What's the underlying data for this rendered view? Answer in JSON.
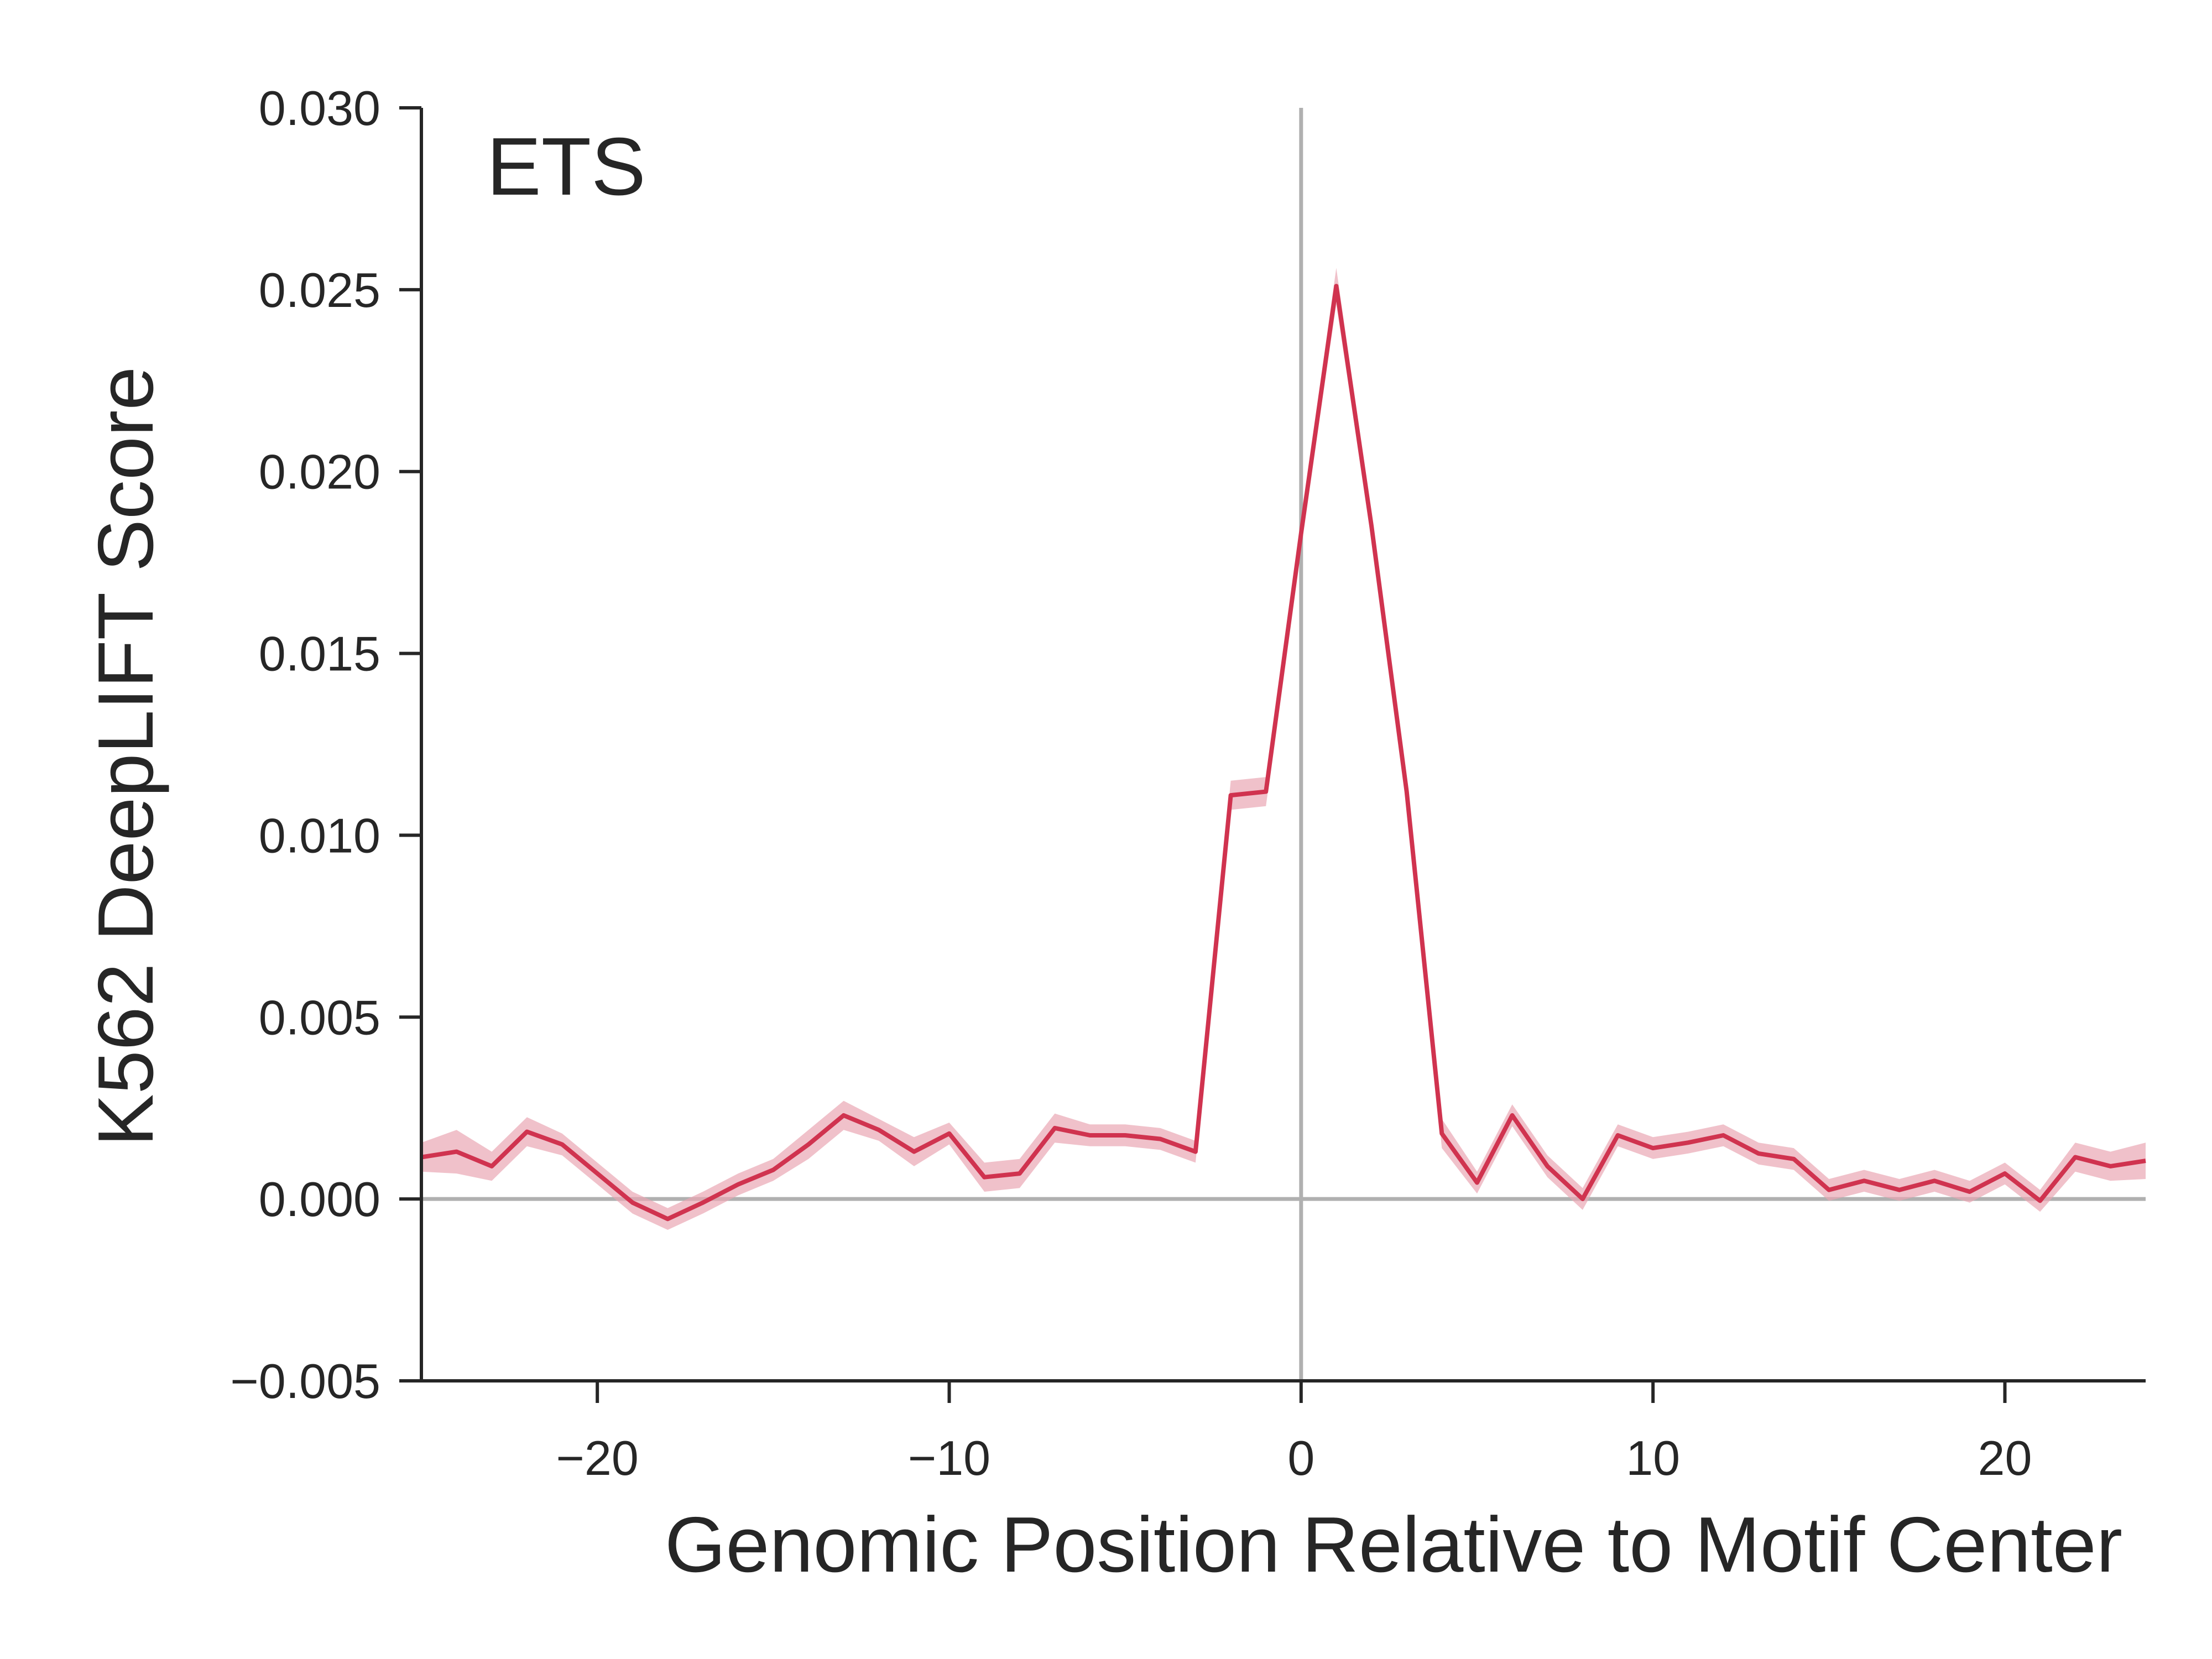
{
  "chart_data": {
    "type": "line",
    "annotation": "ETS",
    "xlabel": "Genomic Position Relative to Motif Center",
    "ylabel": "K562 DeepLIFT Score",
    "xlim": [
      -25,
      24
    ],
    "ylim": [
      -0.005,
      0.03
    ],
    "x_ticks": [
      -20,
      -10,
      0,
      10,
      20
    ],
    "x_tick_labels": [
      "−20",
      "−10",
      "0",
      "10",
      "20"
    ],
    "y_ticks": [
      -0.005,
      0.0,
      0.005,
      0.01,
      0.015,
      0.02,
      0.025,
      0.03
    ],
    "y_tick_labels": [
      "−0.005",
      "0.000",
      "0.005",
      "0.010",
      "0.015",
      "0.020",
      "0.025",
      "0.030"
    ],
    "reference_lines": {
      "x": 0,
      "y": 0
    },
    "grid": false,
    "colors": {
      "line": "#d0334f",
      "band": "#e9a7b4",
      "reference": "#b0b0b0",
      "axis": "#262626"
    },
    "series": [
      {
        "x": [
          -25,
          -24,
          -23,
          -22,
          -21,
          -20,
          -19,
          -18,
          -17,
          -16,
          -15,
          -14,
          -13,
          -12,
          -11,
          -10,
          -9,
          -8,
          -7,
          -6,
          -5,
          -4,
          -3,
          -2,
          -1,
          0,
          1,
          2,
          3,
          4,
          5,
          6,
          7,
          8,
          9,
          10,
          11,
          12,
          13,
          14,
          15,
          16,
          17,
          18,
          19,
          20,
          21,
          22,
          23,
          24
        ],
        "y": [
          0.00115,
          0.0013,
          0.0009,
          0.00185,
          0.0015,
          0.0007,
          -0.0001,
          -0.00055,
          -0.0001,
          0.0004,
          0.0008,
          0.0015,
          0.0023,
          0.0019,
          0.0013,
          0.0018,
          0.0006,
          0.0007,
          0.00195,
          0.00175,
          0.00175,
          0.00165,
          0.0013,
          0.0111,
          0.0112,
          0.0183,
          0.0251,
          0.0185,
          0.0112,
          0.0018,
          0.00045,
          0.0023,
          0.0009,
          0.0,
          0.00175,
          0.0014,
          0.00155,
          0.00175,
          0.00125,
          0.0011,
          0.00025,
          0.0005,
          0.00025,
          0.0005,
          0.0002,
          0.0007,
          -5e-05,
          0.00115,
          0.0009,
          0.00105
        ],
        "ci": [
          0.0004,
          0.0006,
          0.0004,
          0.0004,
          0.0003,
          0.0003,
          0.0003,
          0.0003,
          0.0003,
          0.0003,
          0.0003,
          0.0004,
          0.0004,
          0.0003,
          0.0004,
          0.0003,
          0.0004,
          0.0004,
          0.0004,
          0.0003,
          0.0003,
          0.0003,
          0.0003,
          0.0004,
          0.0004,
          0.0003,
          0.0005,
          0.0003,
          0.0003,
          0.0004,
          0.0003,
          0.0003,
          0.0003,
          0.0003,
          0.0003,
          0.0003,
          0.0003,
          0.0003,
          0.0003,
          0.0003,
          0.0003,
          0.0003,
          0.0003,
          0.0003,
          0.0003,
          0.0003,
          0.0003,
          0.0004,
          0.0004,
          0.0005
        ]
      }
    ]
  }
}
